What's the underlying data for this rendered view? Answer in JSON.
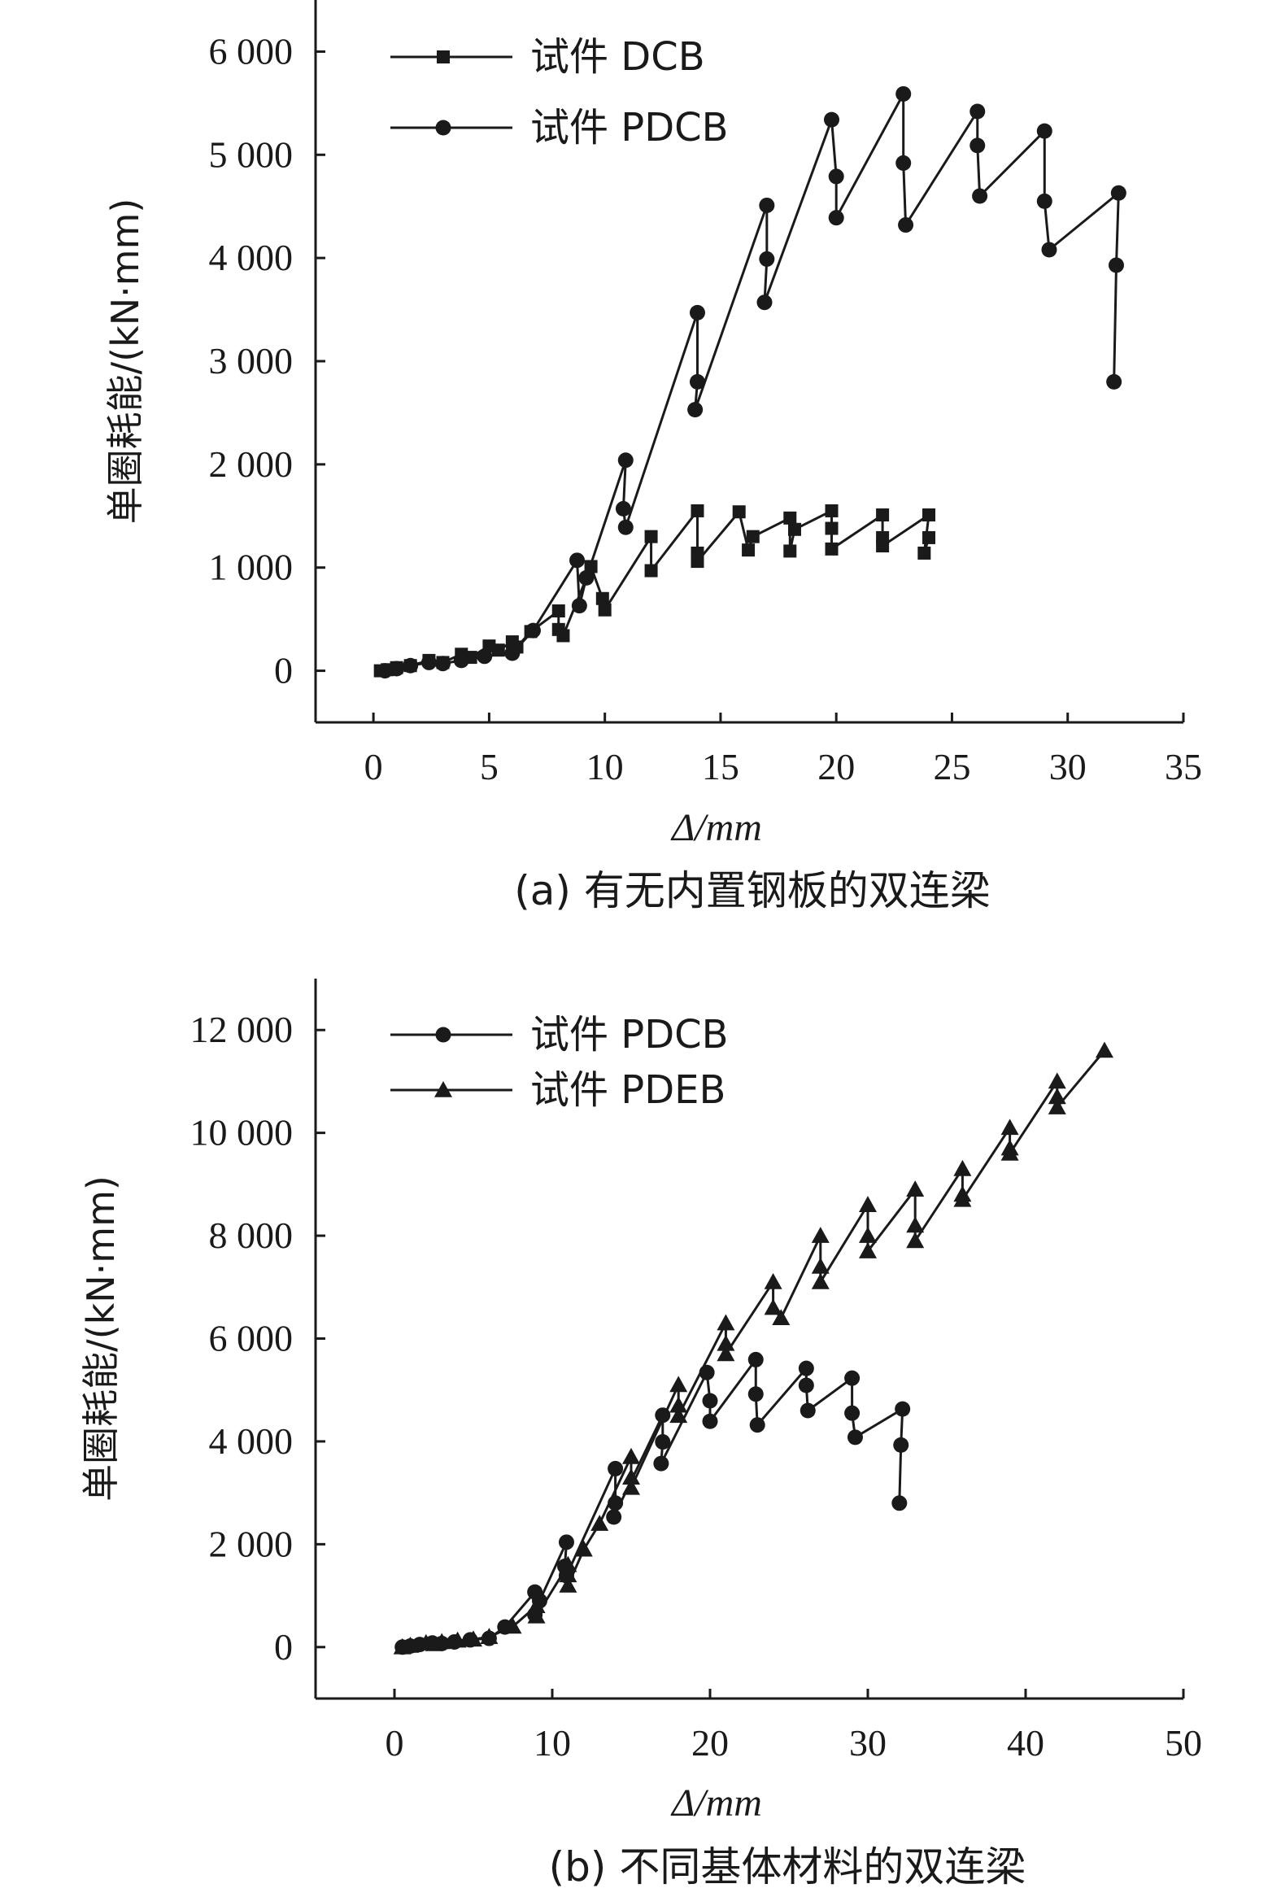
{
  "chart_data": [
    {
      "type": "line",
      "xlabel": "Δ/mm",
      "ylabel": "单圈耗能/(kN·mm)",
      "caption": "(a) 有无内置钢板的双连梁",
      "xlim": [
        -2.5,
        35
      ],
      "ylim": [
        -500,
        6500
      ],
      "xticks": [
        0,
        5,
        10,
        15,
        20,
        25,
        30,
        35
      ],
      "xtick_labels": [
        "0",
        "5",
        "10",
        "15",
        "20",
        "25",
        "30",
        "35"
      ],
      "yticks": [
        0,
        1000,
        2000,
        3000,
        4000,
        5000,
        6000
      ],
      "ytick_labels": [
        "0",
        "1 000",
        "2 000",
        "3 000",
        "4 000",
        "5 000",
        "6 000"
      ],
      "legend_position": "top-left",
      "series": [
        {
          "name": "试件 DCB",
          "marker": "square",
          "x": [
            0.3,
            0.6,
            1.0,
            1.6,
            2.4,
            3.0,
            3.8,
            4.2,
            5.0,
            5.4,
            6.0,
            6.2,
            6.8,
            8.0,
            8.0,
            8.2,
            9.4,
            9.9,
            10.0,
            12.0,
            12.0,
            14.0,
            14.0,
            14.0,
            15.8,
            16.2,
            16.4,
            18.0,
            18.0,
            18.2,
            19.8,
            19.8,
            19.8,
            22.0,
            22.0,
            22.0,
            24.0,
            23.8,
            24.0
          ],
          "y": [
            0,
            10,
            30,
            50,
            100,
            80,
            160,
            130,
            240,
            200,
            280,
            230,
            380,
            580,
            400,
            340,
            1010,
            700,
            590,
            1300,
            970,
            1550,
            1140,
            1060,
            1540,
            1170,
            1300,
            1480,
            1160,
            1370,
            1550,
            1380,
            1180,
            1510,
            1290,
            1210,
            1510,
            1140,
            1290
          ]
        },
        {
          "name": "试件 PDCB",
          "marker": "circle",
          "x": [
            0.5,
            1.0,
            1.6,
            2.4,
            3.0,
            3.8,
            4.8,
            6.0,
            6.9,
            8.8,
            8.9,
            9.2,
            10.9,
            10.8,
            10.9,
            14.0,
            14.0,
            13.9,
            17.0,
            17.0,
            16.9,
            19.8,
            20.0,
            20.0,
            22.9,
            22.9,
            23.0,
            26.1,
            26.1,
            26.2,
            29.0,
            29.0,
            29.2,
            32.2,
            32.1,
            32.0
          ],
          "y": [
            0,
            20,
            50,
            80,
            70,
            100,
            140,
            170,
            390,
            1070,
            630,
            900,
            2040,
            1570,
            1390,
            3470,
            2800,
            2530,
            4510,
            3990,
            3570,
            5340,
            4790,
            4390,
            5590,
            4920,
            4320,
            5420,
            5090,
            4600,
            5230,
            4550,
            4080,
            4630,
            3930,
            2800
          ]
        }
      ]
    },
    {
      "type": "line",
      "xlabel": "Δ/mm",
      "ylabel": "单圈耗能/(kN·mm)",
      "caption": "(b) 不同基体材料的双连梁",
      "xlim": [
        -5,
        50
      ],
      "ylim": [
        -1000,
        13000
      ],
      "xticks": [
        0,
        10,
        20,
        30,
        40,
        50
      ],
      "xtick_labels": [
        "0",
        "10",
        "20",
        "30",
        "40",
        "50"
      ],
      "yticks": [
        0,
        2000,
        4000,
        6000,
        8000,
        10000,
        12000
      ],
      "ytick_labels": [
        "0",
        "2 000",
        "4 000",
        "6 000",
        "8 000",
        "10 000",
        "12 000"
      ],
      "legend_position": "top-left",
      "series": [
        {
          "name": "试件 PDCB",
          "marker": "circle",
          "x": [
            0.5,
            1.0,
            1.6,
            2.4,
            3.0,
            3.8,
            4.8,
            6.0,
            7.0,
            8.9,
            8.9,
            9.2,
            10.9,
            10.8,
            10.9,
            14.0,
            14.0,
            13.9,
            17.0,
            17.0,
            16.9,
            19.8,
            20.0,
            20.0,
            22.9,
            22.9,
            23.0,
            26.1,
            26.1,
            26.2,
            29.0,
            29.0,
            29.2,
            32.2,
            32.1,
            32.0
          ],
          "y": [
            0,
            20,
            50,
            80,
            70,
            100,
            140,
            170,
            390,
            1070,
            630,
            900,
            2040,
            1570,
            1390,
            3470,
            2800,
            2530,
            4510,
            3990,
            3570,
            5340,
            4790,
            4390,
            5590,
            4920,
            4320,
            5420,
            5090,
            4600,
            5230,
            4550,
            4080,
            4630,
            3930,
            2800
          ]
        },
        {
          "name": "试件 PDEB",
          "marker": "triangle",
          "x": [
            0.5,
            1.0,
            2.0,
            2.5,
            3.0,
            4.0,
            5.0,
            6.0,
            7.5,
            9.0,
            9.0,
            11.0,
            11.0,
            11.0,
            12.0,
            13.0,
            15.0,
            15.0,
            15.0,
            18.0,
            18.0,
            18.0,
            21.0,
            21.0,
            21.0,
            24.0,
            24.0,
            24.5,
            27.0,
            27.0,
            27.0,
            30.0,
            30.0,
            30.0,
            33.0,
            33.0,
            33.0,
            36.0,
            36.0,
            36.0,
            39.0,
            39.0,
            39.0,
            42.0,
            42.0,
            42.0,
            45.0
          ],
          "y": [
            0,
            30,
            80,
            60,
            100,
            130,
            150,
            200,
            400,
            800,
            600,
            1600,
            1400,
            1200,
            1900,
            2400,
            3700,
            3300,
            3100,
            5100,
            4700,
            4500,
            6300,
            5900,
            5700,
            7100,
            6600,
            6400,
            8000,
            7400,
            7100,
            8600,
            8000,
            7700,
            8900,
            8200,
            7900,
            9300,
            8800,
            8700,
            10100,
            9700,
            9600,
            11000,
            10700,
            10500,
            11600
          ]
        }
      ]
    }
  ]
}
